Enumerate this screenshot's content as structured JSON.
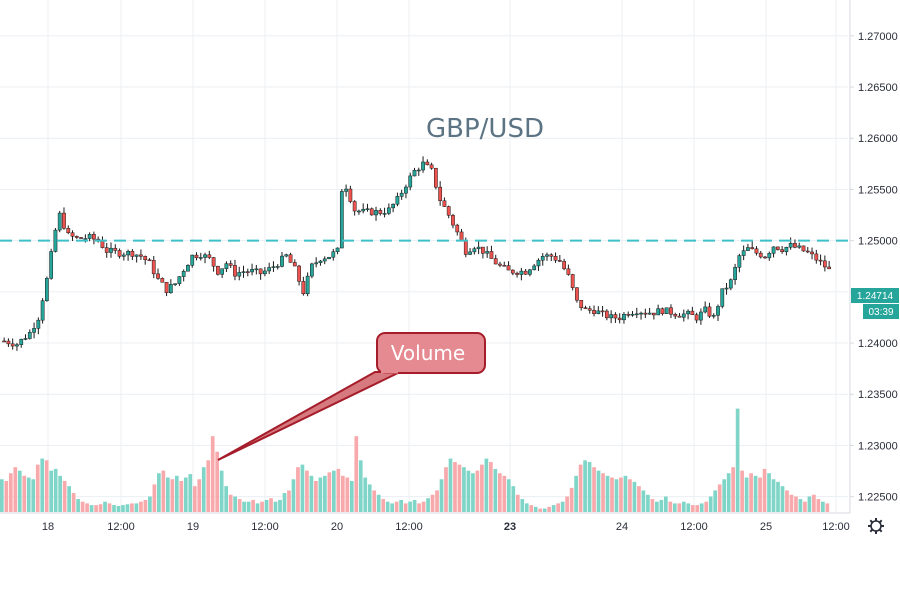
{
  "chart_data": {
    "type": "candlestick",
    "title": "GBP/USD",
    "x_ticks": [
      {
        "label": "18",
        "bold": false
      },
      {
        "label": "12:00",
        "bold": false
      },
      {
        "label": "19",
        "bold": false
      },
      {
        "label": "12:00",
        "bold": false
      },
      {
        "label": "20",
        "bold": false
      },
      {
        "label": "12:00",
        "bold": false
      },
      {
        "label": "23",
        "bold": true
      },
      {
        "label": "24",
        "bold": false
      },
      {
        "label": "12:00",
        "bold": false
      },
      {
        "label": "25",
        "bold": false
      },
      {
        "label": "12:00",
        "bold": false
      }
    ],
    "y_ticks": [
      "1.27000",
      "1.26500",
      "1.26000",
      "1.25500",
      "1.25000",
      "1.24500",
      "1.24000",
      "1.23500",
      "1.23000",
      "1.22500"
    ],
    "ylim": [
      1.2235,
      1.2735
    ],
    "resistance_level": 1.25,
    "last_price": "1.24714",
    "countdown": "03:39",
    "price_path": [
      [
        0,
        1.2402
      ],
      [
        3,
        1.2399
      ],
      [
        6,
        1.241
      ],
      [
        8,
        1.2425
      ],
      [
        10,
        1.2462
      ],
      [
        12,
        1.251
      ],
      [
        13,
        1.2525
      ],
      [
        15,
        1.2505
      ],
      [
        17,
        1.2502
      ],
      [
        20,
        1.2503
      ],
      [
        22,
        1.25
      ],
      [
        24,
        1.249
      ],
      [
        27,
        1.2488
      ],
      [
        30,
        1.2488
      ],
      [
        32,
        1.2485
      ],
      [
        34,
        1.2478
      ],
      [
        36,
        1.2462
      ],
      [
        38,
        1.2452
      ],
      [
        40,
        1.2458
      ],
      [
        42,
        1.2472
      ],
      [
        44,
        1.2485
      ],
      [
        46,
        1.2487
      ],
      [
        48,
        1.2482
      ],
      [
        50,
        1.247
      ],
      [
        52,
        1.2478
      ],
      [
        54,
        1.2468
      ],
      [
        56,
        1.247
      ],
      [
        58,
        1.247
      ],
      [
        60,
        1.2468
      ],
      [
        62,
        1.2472
      ],
      [
        64,
        1.2478
      ],
      [
        66,
        1.2485
      ],
      [
        68,
        1.2472
      ],
      [
        70,
        1.245
      ],
      [
        72,
        1.2475
      ],
      [
        74,
        1.2483
      ],
      [
        76,
        1.2485
      ],
      [
        78,
        1.249
      ],
      [
        79,
        1.255
      ],
      [
        80,
        1.2553
      ],
      [
        82,
        1.253
      ],
      [
        84,
        1.2528
      ],
      [
        86,
        1.2528
      ],
      [
        88,
        1.2528
      ],
      [
        90,
        1.253
      ],
      [
        92,
        1.254
      ],
      [
        94,
        1.2555
      ],
      [
        96,
        1.2568
      ],
      [
        98,
        1.2575
      ],
      [
        100,
        1.2568
      ],
      [
        102,
        1.254
      ],
      [
        104,
        1.2525
      ],
      [
        106,
        1.2508
      ],
      [
        108,
        1.249
      ],
      [
        110,
        1.2495
      ],
      [
        112,
        1.249
      ],
      [
        114,
        1.2482
      ],
      [
        116,
        1.2475
      ],
      [
        118,
        1.247
      ],
      [
        120,
        1.247
      ],
      [
        122,
        1.247
      ],
      [
        124,
        1.2478
      ],
      [
        126,
        1.2485
      ],
      [
        128,
        1.2485
      ],
      [
        130,
        1.248
      ],
      [
        132,
        1.2465
      ],
      [
        134,
        1.244
      ],
      [
        136,
        1.2432
      ],
      [
        138,
        1.2432
      ],
      [
        140,
        1.2428
      ],
      [
        142,
        1.2425
      ],
      [
        144,
        1.2425
      ],
      [
        146,
        1.243
      ],
      [
        148,
        1.2432
      ],
      [
        150,
        1.243
      ],
      [
        152,
        1.243
      ],
      [
        154,
        1.2432
      ],
      [
        156,
        1.243
      ],
      [
        158,
        1.2428
      ],
      [
        160,
        1.2428
      ],
      [
        162,
        1.2425
      ],
      [
        164,
        1.2432
      ],
      [
        166,
        1.2425
      ],
      [
        168,
        1.245
      ],
      [
        170,
        1.246
      ],
      [
        172,
        1.2485
      ],
      [
        174,
        1.2492
      ],
      [
        176,
        1.2488
      ],
      [
        178,
        1.2485
      ],
      [
        180,
        1.2495
      ],
      [
        182,
        1.2492
      ],
      [
        184,
        1.2495
      ],
      [
        186,
        1.2492
      ],
      [
        188,
        1.2488
      ],
      [
        190,
        1.2482
      ],
      [
        192,
        1.2475
      ],
      [
        193,
        1.2471
      ]
    ],
    "volume": [
      38,
      36,
      45,
      52,
      48,
      42,
      40,
      38,
      55,
      62,
      60,
      48,
      50,
      42,
      36,
      30,
      22,
      15,
      12,
      10,
      8,
      8,
      9,
      12,
      10,
      8,
      7,
      8,
      9,
      10,
      10,
      12,
      14,
      18,
      32,
      45,
      48,
      40,
      38,
      42,
      36,
      40,
      44,
      30,
      38,
      52,
      60,
      88,
      70,
      48,
      30,
      20,
      18,
      15,
      12,
      12,
      14,
      10,
      12,
      14,
      16,
      12,
      14,
      22,
      25,
      38,
      52,
      55,
      48,
      42,
      36,
      40,
      42,
      46,
      48,
      50,
      42,
      40,
      36,
      88,
      60,
      40,
      32,
      25,
      20,
      15,
      12,
      10,
      12,
      14,
      10,
      12,
      14,
      10,
      12,
      16,
      20,
      25,
      38,
      52,
      62,
      58,
      55,
      52,
      48,
      45,
      48,
      55,
      62,
      58,
      50,
      45,
      42,
      38,
      30,
      20,
      15,
      10,
      8,
      6,
      4,
      4,
      6,
      8,
      10,
      12,
      18,
      28,
      42,
      55,
      60,
      58,
      52,
      48,
      45,
      42,
      40,
      38,
      40,
      42,
      38,
      35,
      30,
      25,
      20,
      15,
      12,
      14,
      18,
      12,
      10,
      10,
      12,
      10,
      8,
      8,
      10,
      12,
      18,
      25,
      32,
      38,
      45,
      52,
      120,
      48,
      40,
      45,
      42,
      40,
      50,
      45,
      38,
      35,
      30,
      25,
      20,
      18,
      15,
      12,
      18,
      20,
      15,
      12,
      10
    ],
    "vol_max": 130
  },
  "annotation": {
    "label": "Volume"
  }
}
